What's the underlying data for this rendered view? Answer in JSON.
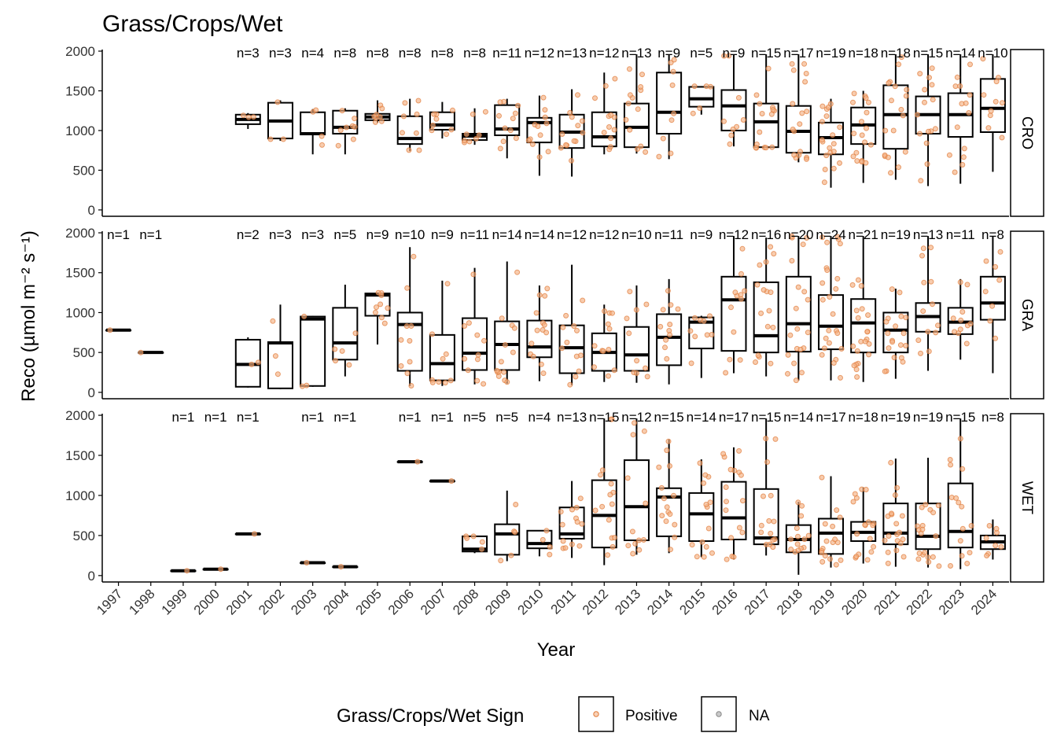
{
  "title": "Grass/Crops/Wet",
  "colors": {
    "positive_fill": "#f4b183",
    "positive_stroke": "#e07b39",
    "na_fill": "#bbbbbb",
    "na_stroke": "#888888",
    "box": "#000000",
    "strip_bg": "#ffffff"
  },
  "chart_data": {
    "type": "boxplot",
    "title": "Grass/Crops/Wet",
    "xlabel": "Year",
    "ylabel": "Reco (µmol m⁻² s⁻¹)",
    "ylim": [
      -80,
      2020
    ],
    "y_ticks": [
      0,
      500,
      1000,
      1500,
      2000
    ],
    "x_categories": [
      "1997",
      "1998",
      "1999",
      "2000",
      "2001",
      "2002",
      "2003",
      "2004",
      "2005",
      "2006",
      "2007",
      "2008",
      "2009",
      "2010",
      "2011",
      "2012",
      "2013",
      "2014",
      "2015",
      "2016",
      "2017",
      "2018",
      "2019",
      "2020",
      "2021",
      "2022",
      "2023",
      "2024"
    ],
    "legend": {
      "title": "Grass/Crops/Wet Sign",
      "position": "bottom",
      "items": [
        "Positive",
        "NA"
      ]
    },
    "panels": [
      {
        "name": "CRO",
        "boxes": [
          {
            "year": "2001",
            "q1": 1080,
            "median": 1140,
            "q3": 1200,
            "lo": 1020,
            "hi": 1220,
            "n": "n=3"
          },
          {
            "year": "2002",
            "q1": 900,
            "median": 1120,
            "q3": 1350,
            "lo": 870,
            "hi": 1380,
            "n": "n=3"
          },
          {
            "year": "2003",
            "q1": 950,
            "median": 960,
            "q3": 1230,
            "lo": 700,
            "hi": 1270,
            "n": "n=4"
          },
          {
            "year": "2004",
            "q1": 960,
            "median": 1040,
            "q3": 1250,
            "lo": 700,
            "hi": 1280,
            "n": "n=8"
          },
          {
            "year": "2005",
            "q1": 1130,
            "median": 1170,
            "q3": 1210,
            "lo": 1100,
            "hi": 1380,
            "n": "n=8"
          },
          {
            "year": "2006",
            "q1": 830,
            "median": 900,
            "q3": 1180,
            "lo": 740,
            "hi": 1400,
            "n": "n=8"
          },
          {
            "year": "2007",
            "q1": 1010,
            "median": 1070,
            "q3": 1230,
            "lo": 900,
            "hi": 1360,
            "n": "n=8"
          },
          {
            "year": "2008",
            "q1": 880,
            "median": 930,
            "q3": 960,
            "lo": 820,
            "hi": 1280,
            "n": "n=8"
          },
          {
            "year": "2009",
            "q1": 940,
            "median": 1020,
            "q3": 1320,
            "lo": 650,
            "hi": 1400,
            "n": "n=11"
          },
          {
            "year": "2010",
            "q1": 850,
            "median": 1100,
            "q3": 1160,
            "lo": 430,
            "hi": 1440,
            "n": "n=12"
          },
          {
            "year": "2011",
            "q1": 780,
            "median": 980,
            "q3": 1200,
            "lo": 420,
            "hi": 1520,
            "n": "n=13"
          },
          {
            "year": "2012",
            "q1": 800,
            "median": 920,
            "q3": 1230,
            "lo": 700,
            "hi": 1730,
            "n": "n=12"
          },
          {
            "year": "2013",
            "q1": 790,
            "median": 1040,
            "q3": 1340,
            "lo": 710,
            "hi": 1960,
            "n": "n=13"
          },
          {
            "year": "2014",
            "q1": 960,
            "median": 1230,
            "q3": 1730,
            "lo": 640,
            "hi": 1960,
            "n": "n=9"
          },
          {
            "year": "2015",
            "q1": 1300,
            "median": 1400,
            "q3": 1550,
            "lo": 1200,
            "hi": 1560,
            "n": "n=5"
          },
          {
            "year": "2016",
            "q1": 1000,
            "median": 1310,
            "q3": 1510,
            "lo": 800,
            "hi": 1960,
            "n": "n=9"
          },
          {
            "year": "2017",
            "q1": 790,
            "median": 1110,
            "q3": 1340,
            "lo": 780,
            "hi": 1960,
            "n": "n=15"
          },
          {
            "year": "2018",
            "q1": 720,
            "median": 990,
            "q3": 1310,
            "lo": 600,
            "hi": 1960,
            "n": "n=17"
          },
          {
            "year": "2019",
            "q1": 700,
            "median": 910,
            "q3": 1100,
            "lo": 280,
            "hi": 1400,
            "n": "n=19"
          },
          {
            "year": "2020",
            "q1": 830,
            "median": 1070,
            "q3": 1290,
            "lo": 340,
            "hi": 1500,
            "n": "n=18"
          },
          {
            "year": "2021",
            "q1": 770,
            "median": 1200,
            "q3": 1570,
            "lo": 380,
            "hi": 1960,
            "n": "n=18"
          },
          {
            "year": "2022",
            "q1": 960,
            "median": 1200,
            "q3": 1430,
            "lo": 300,
            "hi": 1960,
            "n": "n=15"
          },
          {
            "year": "2023",
            "q1": 920,
            "median": 1200,
            "q3": 1470,
            "lo": 330,
            "hi": 1960,
            "n": "n=14"
          },
          {
            "year": "2024",
            "q1": 980,
            "median": 1280,
            "q3": 1650,
            "lo": 480,
            "hi": 1960,
            "n": "n=10"
          }
        ]
      },
      {
        "name": "GRA",
        "boxes": [
          {
            "year": "1997",
            "q1": 780,
            "median": 780,
            "q3": 780,
            "lo": 780,
            "hi": 780,
            "n": "n=1"
          },
          {
            "year": "1998",
            "q1": 500,
            "median": 500,
            "q3": 500,
            "lo": 500,
            "hi": 500,
            "n": "n=1"
          },
          {
            "year": "2001",
            "q1": 70,
            "median": 350,
            "q3": 660,
            "lo": 60,
            "hi": 690,
            "n": "n=2"
          },
          {
            "year": "2002",
            "q1": 50,
            "median": 620,
            "q3": 630,
            "lo": 40,
            "hi": 1100,
            "n": "n=3"
          },
          {
            "year": "2003",
            "q1": 80,
            "median": 920,
            "q3": 950,
            "lo": 70,
            "hi": 960,
            "n": "n=3"
          },
          {
            "year": "2004",
            "q1": 410,
            "median": 620,
            "q3": 1060,
            "lo": 200,
            "hi": 1350,
            "n": "n=5"
          },
          {
            "year": "2005",
            "q1": 960,
            "median": 1220,
            "q3": 1240,
            "lo": 600,
            "hi": 1250,
            "n": "n=9"
          },
          {
            "year": "2006",
            "q1": 270,
            "median": 850,
            "q3": 1000,
            "lo": 80,
            "hi": 1820,
            "n": "n=10"
          },
          {
            "year": "2007",
            "q1": 150,
            "median": 360,
            "q3": 720,
            "lo": 80,
            "hi": 1400,
            "n": "n=9"
          },
          {
            "year": "2008",
            "q1": 280,
            "median": 490,
            "q3": 930,
            "lo": 100,
            "hi": 1560,
            "n": "n=11"
          },
          {
            "year": "2009",
            "q1": 280,
            "median": 600,
            "q3": 890,
            "lo": 110,
            "hi": 1640,
            "n": "n=14"
          },
          {
            "year": "2010",
            "q1": 440,
            "median": 570,
            "q3": 900,
            "lo": 140,
            "hi": 1340,
            "n": "n=14"
          },
          {
            "year": "2011",
            "q1": 240,
            "median": 560,
            "q3": 840,
            "lo": 90,
            "hi": 1600,
            "n": "n=12"
          },
          {
            "year": "2012",
            "q1": 270,
            "median": 500,
            "q3": 740,
            "lo": 130,
            "hi": 1100,
            "n": "n=12"
          },
          {
            "year": "2013",
            "q1": 270,
            "median": 470,
            "q3": 820,
            "lo": 120,
            "hi": 1340,
            "n": "n=10"
          },
          {
            "year": "2014",
            "q1": 340,
            "median": 690,
            "q3": 980,
            "lo": 100,
            "hi": 1420,
            "n": "n=11"
          },
          {
            "year": "2015",
            "q1": 550,
            "median": 880,
            "q3": 940,
            "lo": 180,
            "hi": 960,
            "n": "n=9"
          },
          {
            "year": "2016",
            "q1": 520,
            "median": 1160,
            "q3": 1450,
            "lo": 240,
            "hi": 1960,
            "n": "n=12"
          },
          {
            "year": "2017",
            "q1": 500,
            "median": 710,
            "q3": 1380,
            "lo": 200,
            "hi": 1940,
            "n": "n=16"
          },
          {
            "year": "2018",
            "q1": 510,
            "median": 860,
            "q3": 1450,
            "lo": 150,
            "hi": 1960,
            "n": "n=20"
          },
          {
            "year": "2019",
            "q1": 540,
            "median": 830,
            "q3": 1220,
            "lo": 150,
            "hi": 1960,
            "n": "n=24"
          },
          {
            "year": "2020",
            "q1": 500,
            "median": 870,
            "q3": 1170,
            "lo": 130,
            "hi": 1960,
            "n": "n=21"
          },
          {
            "year": "2021",
            "q1": 500,
            "median": 780,
            "q3": 1000,
            "lo": 170,
            "hi": 1300,
            "n": "n=19"
          },
          {
            "year": "2022",
            "q1": 760,
            "median": 950,
            "q3": 1120,
            "lo": 270,
            "hi": 1960,
            "n": "n=13"
          },
          {
            "year": "2023",
            "q1": 730,
            "median": 880,
            "q3": 1060,
            "lo": 410,
            "hi": 1420,
            "n": "n=11"
          },
          {
            "year": "2024",
            "q1": 910,
            "median": 1120,
            "q3": 1450,
            "lo": 240,
            "hi": 1960,
            "n": "n=8"
          }
        ]
      },
      {
        "name": "WET",
        "boxes": [
          {
            "year": "1999",
            "q1": 60,
            "median": 60,
            "q3": 60,
            "lo": 60,
            "hi": 60,
            "n": "n=1"
          },
          {
            "year": "2000",
            "q1": 80,
            "median": 80,
            "q3": 80,
            "lo": 80,
            "hi": 80,
            "n": "n=1"
          },
          {
            "year": "2001",
            "q1": 520,
            "median": 520,
            "q3": 520,
            "lo": 520,
            "hi": 520,
            "n": "n=1"
          },
          {
            "year": "2003",
            "q1": 160,
            "median": 160,
            "q3": 160,
            "lo": 160,
            "hi": 160,
            "n": "n=1"
          },
          {
            "year": "2004",
            "q1": 110,
            "median": 110,
            "q3": 110,
            "lo": 110,
            "hi": 110,
            "n": "n=1"
          },
          {
            "year": "2006",
            "q1": 1420,
            "median": 1420,
            "q3": 1420,
            "lo": 1420,
            "hi": 1420,
            "n": "n=1"
          },
          {
            "year": "2007",
            "q1": 1180,
            "median": 1180,
            "q3": 1180,
            "lo": 1180,
            "hi": 1180,
            "n": "n=1"
          },
          {
            "year": "2008",
            "q1": 300,
            "median": 330,
            "q3": 490,
            "lo": 280,
            "hi": 490,
            "n": "n=5"
          },
          {
            "year": "2009",
            "q1": 260,
            "median": 520,
            "q3": 640,
            "lo": 180,
            "hi": 1060,
            "n": "n=5"
          },
          {
            "year": "2010",
            "q1": 340,
            "median": 400,
            "q3": 560,
            "lo": 240,
            "hi": 560,
            "n": "n=4"
          },
          {
            "year": "2011",
            "q1": 460,
            "median": 520,
            "q3": 850,
            "lo": 220,
            "hi": 1180,
            "n": "n=13"
          },
          {
            "year": "2012",
            "q1": 350,
            "median": 750,
            "q3": 1190,
            "lo": 130,
            "hi": 1960,
            "n": "n=15"
          },
          {
            "year": "2013",
            "q1": 440,
            "median": 860,
            "q3": 1440,
            "lo": 260,
            "hi": 1960,
            "n": "n=12"
          },
          {
            "year": "2014",
            "q1": 490,
            "median": 980,
            "q3": 1090,
            "lo": 280,
            "hi": 1700,
            "n": "n=15"
          },
          {
            "year": "2015",
            "q1": 430,
            "median": 770,
            "q3": 1030,
            "lo": 230,
            "hi": 1450,
            "n": "n=14"
          },
          {
            "year": "2016",
            "q1": 450,
            "median": 720,
            "q3": 1170,
            "lo": 200,
            "hi": 1600,
            "n": "n=17"
          },
          {
            "year": "2017",
            "q1": 390,
            "median": 470,
            "q3": 1080,
            "lo": 250,
            "hi": 1960,
            "n": "n=15"
          },
          {
            "year": "2018",
            "q1": 290,
            "median": 450,
            "q3": 630,
            "lo": 10,
            "hi": 920,
            "n": "n=14"
          },
          {
            "year": "2019",
            "q1": 270,
            "median": 530,
            "q3": 710,
            "lo": 100,
            "hi": 1240,
            "n": "n=17"
          },
          {
            "year": "2020",
            "q1": 430,
            "median": 540,
            "q3": 670,
            "lo": 150,
            "hi": 1100,
            "n": "n=18"
          },
          {
            "year": "2021",
            "q1": 390,
            "median": 530,
            "q3": 900,
            "lo": 110,
            "hi": 1460,
            "n": "n=19"
          },
          {
            "year": "2022",
            "q1": 330,
            "median": 490,
            "q3": 900,
            "lo": 100,
            "hi": 1470,
            "n": "n=19"
          },
          {
            "year": "2023",
            "q1": 350,
            "median": 550,
            "q3": 1150,
            "lo": 80,
            "hi": 1960,
            "n": "n=15"
          },
          {
            "year": "2024",
            "q1": 330,
            "median": 420,
            "q3": 500,
            "lo": 200,
            "hi": 700,
            "n": "n=8"
          }
        ]
      }
    ]
  }
}
